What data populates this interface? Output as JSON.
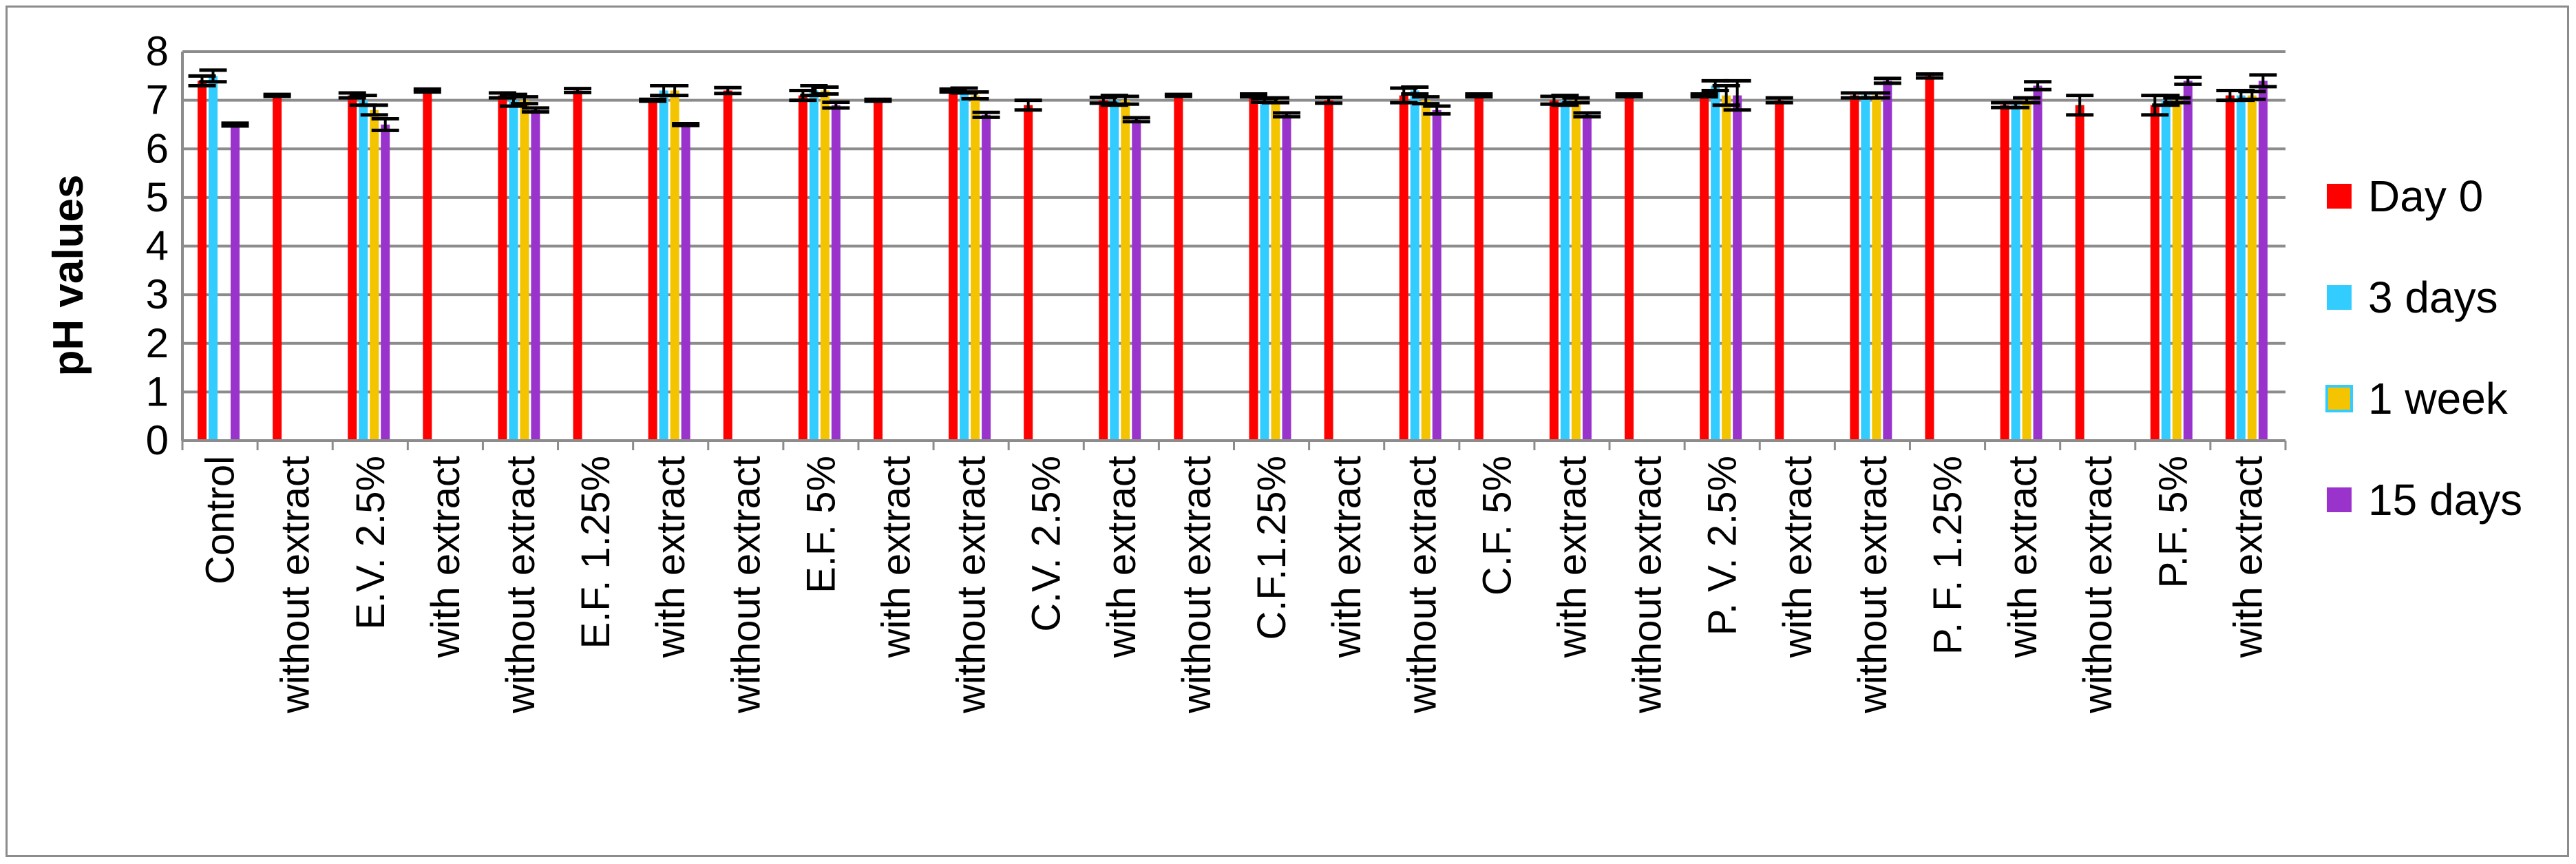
{
  "chart_data": {
    "type": "bar",
    "ylabel": "pH values",
    "ylim": [
      0,
      8
    ],
    "yticks": [
      0,
      1,
      2,
      3,
      4,
      5,
      6,
      7,
      8
    ],
    "grid": true,
    "legend_position": "right",
    "categories": [
      "Control",
      "without extract",
      "E.V. 2.5%",
      "with extract",
      "without extract",
      "E.F. 1.25%",
      "with extract",
      "without extract",
      "E.F. 5%",
      "with extract",
      "without extract",
      "C.V. 2.5%",
      "with extract",
      "without extract",
      "C.F.1.25%",
      "with extract",
      "without extract",
      "C.F. 5%",
      "with extract",
      "without extract",
      "P. V. 2.5%",
      "with extract",
      "without extract",
      "P. F. 1.25%",
      "with extract",
      "without extract",
      "P.F. 5%",
      "with extract"
    ],
    "series": [
      {
        "name": "Day 0",
        "color": "#ff0000",
        "values": [
          7.4,
          7.1,
          7.1,
          7.2,
          7.1,
          7.2,
          7.0,
          7.2,
          7.1,
          7.0,
          7.2,
          6.9,
          7.0,
          7.1,
          7.1,
          7.0,
          7.1,
          7.1,
          7.0,
          7.1,
          7.1,
          7.0,
          7.1,
          7.5,
          6.9,
          6.9,
          6.9,
          7.1
        ],
        "errors": [
          0.1,
          0.02,
          0.05,
          0.03,
          0.05,
          0.04,
          0.02,
          0.06,
          0.1,
          0.02,
          0.03,
          0.1,
          0.06,
          0.02,
          0.03,
          0.06,
          0.15,
          0.03,
          0.08,
          0.03,
          0.03,
          0.05,
          0.05,
          0.04,
          0.05,
          0.2,
          0.2,
          0.1
        ]
      },
      {
        "name": "3 days",
        "color": "#33ccff",
        "values": [
          7.5,
          null,
          7.0,
          null,
          7.0,
          null,
          7.2,
          null,
          7.2,
          null,
          7.2,
          null,
          7.0,
          null,
          7.0,
          null,
          7.2,
          null,
          7.0,
          null,
          7.3,
          null,
          7.1,
          null,
          6.9,
          null,
          7.0,
          7.1
        ],
        "errors": [
          0.12,
          null,
          0.1,
          null,
          0.12,
          null,
          0.1,
          null,
          0.1,
          null,
          0.05,
          null,
          0.1,
          null,
          0.04,
          null,
          0.07,
          null,
          0.1,
          null,
          0.1,
          null,
          0.05,
          null,
          0.05,
          null,
          0.1,
          0.1
        ]
      },
      {
        "name": "1 week",
        "color": "#f5c400",
        "values": [
          null,
          null,
          6.8,
          null,
          7.0,
          null,
          7.2,
          null,
          7.2,
          null,
          7.1,
          null,
          7.0,
          null,
          7.0,
          null,
          7.0,
          null,
          7.0,
          null,
          7.1,
          null,
          7.1,
          null,
          7.0,
          null,
          7.0,
          7.1
        ],
        "errors": [
          null,
          null,
          0.1,
          null,
          0.07,
          null,
          0.1,
          null,
          0.07,
          null,
          0.07,
          null,
          0.08,
          null,
          0.05,
          null,
          0.07,
          null,
          0.05,
          null,
          0.2,
          null,
          0.05,
          null,
          0.05,
          null,
          0.05,
          0.08
        ]
      },
      {
        "name": "15 days",
        "color": "#9933cc",
        "values": [
          6.5,
          null,
          6.5,
          null,
          6.8,
          null,
          6.5,
          null,
          6.9,
          null,
          6.7,
          null,
          6.6,
          null,
          6.7,
          null,
          6.8,
          null,
          6.7,
          null,
          7.1,
          null,
          7.4,
          null,
          7.3,
          null,
          7.4,
          7.4
        ],
        "errors": [
          0.03,
          null,
          0.12,
          null,
          0.04,
          null,
          0.02,
          null,
          0.06,
          null,
          0.05,
          null,
          0.04,
          null,
          0.04,
          null,
          0.08,
          null,
          0.04,
          null,
          0.3,
          null,
          0.05,
          null,
          0.08,
          null,
          0.07,
          0.12
        ]
      }
    ]
  }
}
